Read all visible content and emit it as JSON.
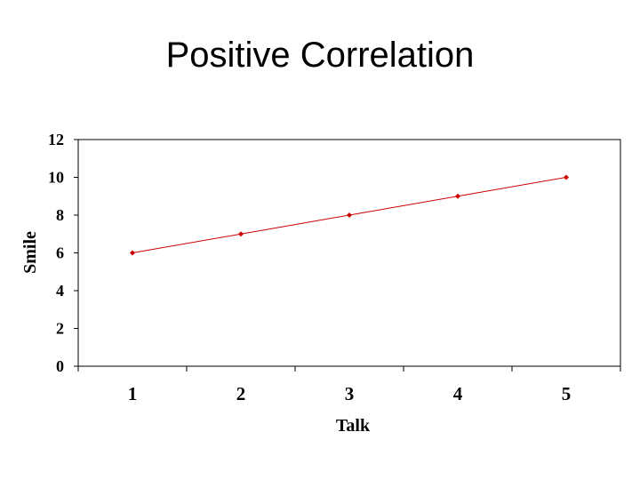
{
  "slide": {
    "title": "Positive Correlation"
  },
  "chart_data": {
    "type": "line",
    "title": "Positive Correlation",
    "xlabel": "Talk",
    "ylabel": "Smile",
    "categories": [
      "1",
      "2",
      "3",
      "4",
      "5"
    ],
    "series": [
      {
        "values": [
          6,
          7,
          8,
          9,
          10
        ],
        "color": "#cc0000"
      }
    ],
    "ylim": [
      0,
      12
    ],
    "yticks": [
      "0",
      "2",
      "4",
      "6",
      "8",
      "10",
      "12"
    ],
    "grid": false,
    "legend": "none"
  }
}
